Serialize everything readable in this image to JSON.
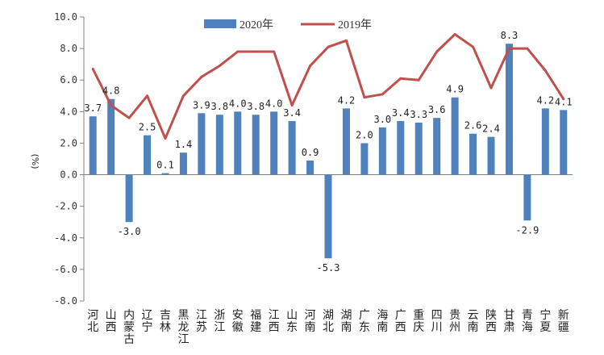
{
  "chart_data": {
    "type": "bar",
    "categories": [
      "河北",
      "山西",
      "内蒙古",
      "辽宁",
      "吉林",
      "黑龙江",
      "江苏",
      "浙江",
      "安徽",
      "福建",
      "江西",
      "山东",
      "河南",
      "湖北",
      "湖南",
      "广东",
      "海南",
      "广西",
      "重庆",
      "四川",
      "贵州",
      "云南",
      "陕西",
      "甘肃",
      "青海",
      "宁夏",
      "新疆"
    ],
    "series": [
      {
        "name": "2020年",
        "type": "bar",
        "color": "#4f81bd",
        "values": [
          3.7,
          4.8,
          -3.0,
          2.5,
          0.1,
          1.4,
          3.9,
          3.8,
          4.0,
          3.8,
          4.0,
          3.4,
          0.9,
          -5.3,
          4.2,
          2.0,
          3.0,
          3.4,
          3.3,
          3.6,
          4.9,
          2.6,
          2.4,
          8.3,
          -2.9,
          4.2,
          4.1
        ],
        "labels": [
          "3.7",
          "4.8",
          "-3.0",
          "2.5",
          "0.1",
          "1.4",
          "3.9",
          "3.8",
          "4.0",
          "3.8",
          "4.0",
          "3.4",
          "0.9",
          "-5.3",
          "4.2",
          "2.0",
          "3.0",
          "3.4",
          "3.3",
          "3.6",
          "4.9",
          "2.6",
          "2.4",
          "8.3",
          "-2.9",
          "4.2",
          "4.1"
        ]
      },
      {
        "name": "2019年",
        "type": "line",
        "color": "#c0504d",
        "values": [
          6.7,
          4.4,
          3.6,
          5.0,
          2.3,
          5.0,
          6.2,
          6.9,
          7.8,
          7.8,
          7.8,
          4.4,
          6.9,
          8.1,
          8.5,
          4.9,
          5.1,
          6.1,
          6.0,
          7.8,
          8.9,
          8.1,
          5.5,
          8.0,
          8.0,
          6.6,
          4.8
        ]
      }
    ],
    "ylim": [
      -8.0,
      10.0
    ],
    "yticks": [
      "10.0",
      "8.0",
      "6.0",
      "4.0",
      "2.0",
      "0.0",
      "-2.0",
      "-4.0",
      "-6.0",
      "-8.0"
    ],
    "ylabel": "(%)",
    "xlabel": "",
    "title": "",
    "legend_position": "top-center",
    "grid": false
  }
}
